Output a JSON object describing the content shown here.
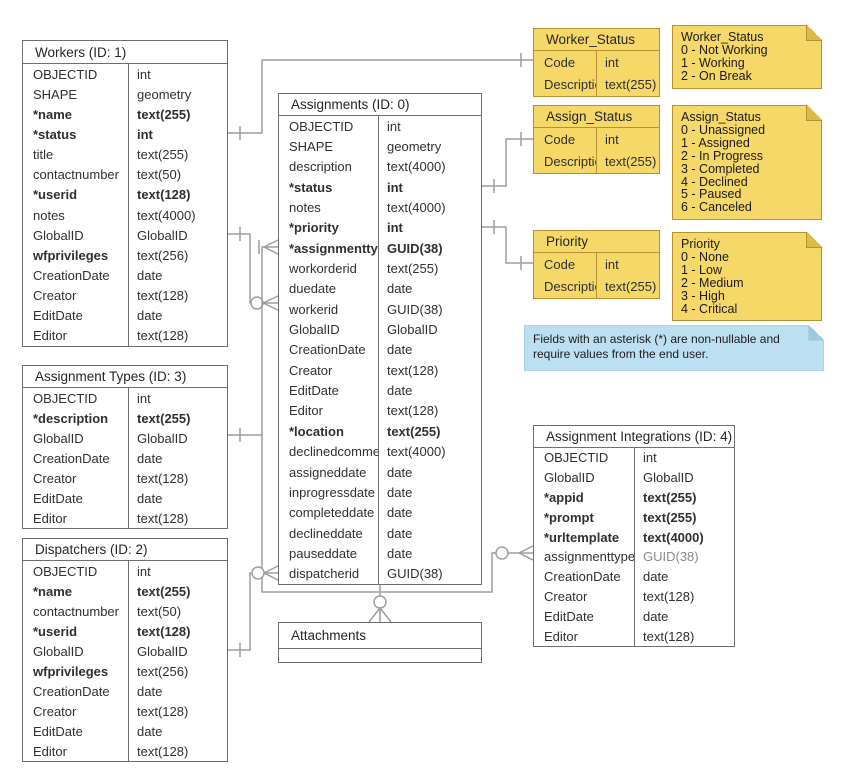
{
  "entity_tables": [
    {
      "key": "workers",
      "title": "Workers (ID: 1)",
      "fields": [
        {
          "n": "OBJECTID",
          "t": "int"
        },
        {
          "n": "SHAPE",
          "t": "geometry"
        },
        {
          "n": "*name",
          "t": "text(255)",
          "b": 1
        },
        {
          "n": "*status",
          "t": "int",
          "b": 1
        },
        {
          "n": "title",
          "t": "text(255)"
        },
        {
          "n": "contactnumber",
          "t": "text(50)"
        },
        {
          "n": "*userid",
          "t": "text(128)",
          "b": 1
        },
        {
          "n": "notes",
          "t": "text(4000)"
        },
        {
          "n": "GlobalID",
          "t": "GlobalID"
        },
        {
          "n": "wfprivileges",
          "t": "text(256)",
          "bn": 1
        },
        {
          "n": "CreationDate",
          "t": "date"
        },
        {
          "n": "Creator",
          "t": "text(128)"
        },
        {
          "n": "EditDate",
          "t": "date"
        },
        {
          "n": "Editor",
          "t": "text(128)"
        }
      ]
    },
    {
      "key": "assignments",
      "title": "Assignments (ID: 0)",
      "fields": [
        {
          "n": "OBJECTID",
          "t": "int"
        },
        {
          "n": "SHAPE",
          "t": "geometry"
        },
        {
          "n": "description",
          "t": "text(4000)"
        },
        {
          "n": "*status",
          "t": "int",
          "b": 1
        },
        {
          "n": "notes",
          "t": "text(4000)"
        },
        {
          "n": "*priority",
          "t": "int",
          "b": 1
        },
        {
          "n": "*assignmenttype",
          "t": "GUID(38)",
          "b": 1
        },
        {
          "n": "workorderid",
          "t": "text(255)"
        },
        {
          "n": "duedate",
          "t": "date"
        },
        {
          "n": "workerid",
          "t": "GUID(38)"
        },
        {
          "n": "GlobalID",
          "t": "GlobalID"
        },
        {
          "n": "CreationDate",
          "t": "date"
        },
        {
          "n": "Creator",
          "t": "text(128)"
        },
        {
          "n": "EditDate",
          "t": "date"
        },
        {
          "n": "Editor",
          "t": "text(128)"
        },
        {
          "n": "*location",
          "t": "text(255)",
          "b": 1
        },
        {
          "n": "declinedcomment",
          "t": "text(4000)"
        },
        {
          "n": "assigneddate",
          "t": "date"
        },
        {
          "n": "inprogressdate",
          "t": "date"
        },
        {
          "n": "completeddate",
          "t": "date"
        },
        {
          "n": "declineddate",
          "t": "date"
        },
        {
          "n": "pauseddate",
          "t": "date"
        },
        {
          "n": "dispatcherid",
          "t": "GUID(38)"
        }
      ]
    },
    {
      "key": "assignment_types",
      "title": "Assignment Types (ID: 3)",
      "fields": [
        {
          "n": "OBJECTID",
          "t": "int"
        },
        {
          "n": "*description",
          "t": "text(255)",
          "b": 1
        },
        {
          "n": "GlobalID",
          "t": "GlobalID"
        },
        {
          "n": "CreationDate",
          "t": "date"
        },
        {
          "n": "Creator",
          "t": "text(128)"
        },
        {
          "n": "EditDate",
          "t": "date"
        },
        {
          "n": "Editor",
          "t": "text(128)"
        }
      ]
    },
    {
      "key": "dispatchers",
      "title": "Dispatchers (ID: 2)",
      "fields": [
        {
          "n": "OBJECTID",
          "t": "int"
        },
        {
          "n": "*name",
          "t": "text(255)",
          "b": 1
        },
        {
          "n": "contactnumber",
          "t": "text(50)"
        },
        {
          "n": "*userid",
          "t": "text(128)",
          "b": 1
        },
        {
          "n": "GlobalID",
          "t": "GlobalID"
        },
        {
          "n": "wfprivileges",
          "t": "text(256)",
          "bn": 1
        },
        {
          "n": "CreationDate",
          "t": "date"
        },
        {
          "n": "Creator",
          "t": "text(128)"
        },
        {
          "n": "EditDate",
          "t": "date"
        },
        {
          "n": "Editor",
          "t": "text(128)"
        }
      ]
    },
    {
      "key": "attachments",
      "title": "Attachments",
      "fields": []
    },
    {
      "key": "integrations",
      "title": "Assignment Integrations (ID: 4)",
      "fields": [
        {
          "n": "OBJECTID",
          "t": "int"
        },
        {
          "n": "GlobalID",
          "t": "GlobalID"
        },
        {
          "n": "*appid",
          "t": "text(255)",
          "b": 1
        },
        {
          "n": "*prompt",
          "t": "text(255)",
          "b": 1
        },
        {
          "n": "*urltemplate",
          "t": "text(4000)",
          "b": 1
        },
        {
          "n": "assignmenttype",
          "t": "GUID(38)",
          "mt": 1
        },
        {
          "n": "CreationDate",
          "t": "date"
        },
        {
          "n": "Creator",
          "t": "text(128)"
        },
        {
          "n": "EditDate",
          "t": "date"
        },
        {
          "n": "Editor",
          "t": "text(128)"
        }
      ]
    }
  ],
  "lookup_tables": [
    {
      "key": "worker_status",
      "title": "Worker_Status",
      "fields": [
        {
          "n": "Code",
          "t": "int"
        },
        {
          "n": "Description",
          "t": "text(255)"
        }
      ]
    },
    {
      "key": "assign_status",
      "title": "Assign_Status",
      "fields": [
        {
          "n": "Code",
          "t": "int"
        },
        {
          "n": "Description",
          "t": "text(255)"
        }
      ]
    },
    {
      "key": "priority",
      "title": "Priority",
      "fields": [
        {
          "n": "Code",
          "t": "int"
        },
        {
          "n": "Description",
          "t": "text(255)"
        }
      ]
    }
  ],
  "sticky_notes": [
    {
      "key": "worker_status_note",
      "lines": [
        "Worker_Status",
        "0 - Not Working",
        "1 - Working",
        "2 - On Break"
      ]
    },
    {
      "key": "assign_status_note",
      "lines": [
        "Assign_Status",
        "0 - Unassigned",
        "1 - Assigned",
        "2 - In Progress",
        "3 - Completed",
        "4 - Declined",
        "5 - Paused",
        "6 - Canceled"
      ]
    },
    {
      "key": "priority_note",
      "lines": [
        "Priority",
        "0 - None",
        "1 - Low",
        "2 - Medium",
        "3 - High",
        "4 - Critical"
      ]
    }
  ],
  "callout_note": {
    "text": "Fields with an asterisk (*) are non-nullable and require values from the end user."
  },
  "relationships": [
    {
      "key": "workers-status--worker-status-code",
      "from": "Workers.status",
      "to": "Worker_Status.Code",
      "cardinality": "one-to-one"
    },
    {
      "key": "workers-globalid--assignments-workerid",
      "from": "Workers.GlobalID",
      "to": "Assignments.workerid",
      "cardinality": "one-to-zero-or-many"
    },
    {
      "key": "assignmenttypes-globalid--assignments-assignmenttype",
      "from": "Assignment Types.GlobalID",
      "to": "Assignments.assignmenttype",
      "cardinality": "one-to-many"
    },
    {
      "key": "assignmenttypes-globalid--integrations-assignmenttype",
      "from": "Assignment Types.GlobalID",
      "to": "Assignment Integrations.assignmenttype",
      "cardinality": "one-to-zero-or-many"
    },
    {
      "key": "dispatchers-globalid--assignments-dispatcherid",
      "from": "Dispatchers.GlobalID",
      "to": "Assignments.dispatcherid",
      "cardinality": "one-to-zero-or-many"
    },
    {
      "key": "assignments-status--assign-status-code",
      "from": "Assignments.status",
      "to": "Assign_Status.Code",
      "cardinality": "one-to-one"
    },
    {
      "key": "assignments-priority--priority-code",
      "from": "Assignments.priority",
      "to": "Priority.Code",
      "cardinality": "one-to-one"
    },
    {
      "key": "assignments--attachments",
      "from": "Assignments",
      "to": "Attachments",
      "cardinality": "zero-or-many"
    }
  ],
  "colors": {
    "table_border": "#6e6e6e",
    "sticky_fill": "#f5d868",
    "sticky_border": "#b5922f",
    "sticky_fold": "#ddba45",
    "callout_fill": "#bcdff1",
    "callout_fold": "#9cc9e2",
    "connector": "#9e9e9e"
  }
}
